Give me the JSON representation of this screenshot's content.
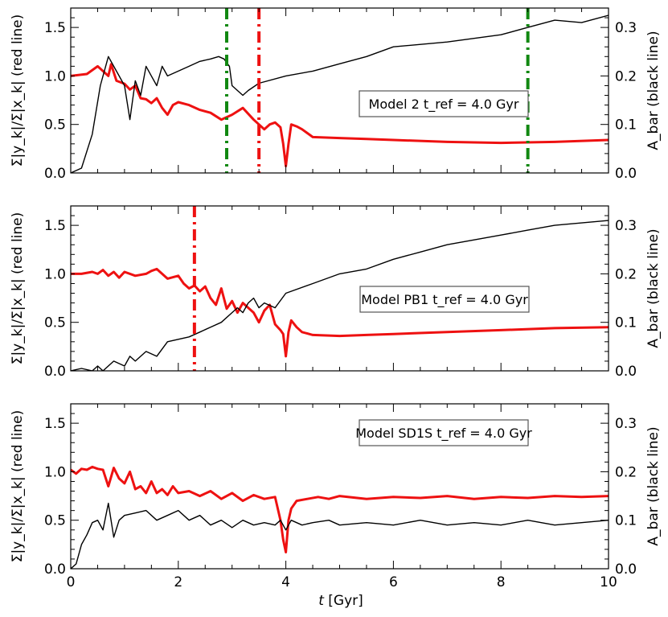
{
  "figure": {
    "xlabel": "t [Gyr]",
    "left_ylabel": "Σ|y_k|/Σ|x_k| (red line)",
    "right_ylabel": "A_bar (black line)",
    "x_ticks": [
      "0",
      "2",
      "4",
      "6",
      "8",
      "10"
    ],
    "left_ticks": [
      "0.0",
      "0.5",
      "1.0",
      "1.5"
    ],
    "right_ticks": [
      "0.0",
      "0.1",
      "0.2",
      "0.3"
    ],
    "colors": {
      "red": "#ee1111",
      "black": "#000000",
      "green": "#118811"
    }
  },
  "chart_data": [
    {
      "type": "line",
      "legend": "Model 2 t_ref = 4.0 Gyr",
      "model": "Model 2",
      "tref": "4.0 Gyr",
      "xlim": [
        0,
        10
      ],
      "ylim_left": [
        0,
        1.7
      ],
      "ylim_right": [
        0,
        0.34
      ],
      "series": [
        {
          "name": "red line",
          "axis": "left",
          "color": "#ee1111",
          "x": [
            0,
            0.3,
            0.5,
            0.7,
            0.75,
            0.85,
            1.0,
            1.1,
            1.2,
            1.3,
            1.4,
            1.5,
            1.6,
            1.7,
            1.8,
            1.9,
            2.0,
            2.2,
            2.4,
            2.6,
            2.8,
            3.0,
            3.2,
            3.4,
            3.5,
            3.6,
            3.7,
            3.8,
            3.9,
            3.95,
            4.0,
            4.05,
            4.1,
            4.2,
            4.3,
            4.5,
            5.0,
            5.5,
            6.0,
            7.0,
            8.0,
            9.0,
            10.0
          ],
          "y": [
            1.0,
            1.02,
            1.1,
            1.0,
            1.12,
            0.95,
            0.92,
            0.86,
            0.9,
            0.77,
            0.76,
            0.72,
            0.77,
            0.67,
            0.6,
            0.7,
            0.73,
            0.7,
            0.65,
            0.62,
            0.55,
            0.6,
            0.67,
            0.55,
            0.5,
            0.45,
            0.5,
            0.52,
            0.47,
            0.3,
            0.07,
            0.3,
            0.5,
            0.48,
            0.45,
            0.37,
            0.36,
            0.35,
            0.34,
            0.32,
            0.31,
            0.32,
            0.34
          ]
        },
        {
          "name": "black line",
          "axis": "right",
          "color": "#000000",
          "x": [
            0,
            0.2,
            0.4,
            0.55,
            0.7,
            0.8,
            0.9,
            1.0,
            1.1,
            1.2,
            1.3,
            1.4,
            1.5,
            1.6,
            1.7,
            1.8,
            2.0,
            2.2,
            2.4,
            2.6,
            2.75,
            2.85,
            2.95,
            3.0,
            3.1,
            3.2,
            3.3,
            3.5,
            4.0,
            4.5,
            5.0,
            5.5,
            6.0,
            7.0,
            8.0,
            8.5,
            9.0,
            9.5,
            10.0
          ],
          "y": [
            0.0,
            0.01,
            0.08,
            0.18,
            0.24,
            0.22,
            0.2,
            0.18,
            0.11,
            0.19,
            0.16,
            0.22,
            0.2,
            0.18,
            0.22,
            0.2,
            0.21,
            0.22,
            0.23,
            0.235,
            0.24,
            0.235,
            0.22,
            0.18,
            0.17,
            0.16,
            0.17,
            0.185,
            0.2,
            0.21,
            0.225,
            0.24,
            0.26,
            0.27,
            0.285,
            0.3,
            0.315,
            0.31,
            0.325
          ]
        }
      ],
      "vlines": [
        {
          "x": 2.9,
          "color": "#118811",
          "style": "dashdot"
        },
        {
          "x": 3.5,
          "color": "#ee1111",
          "style": "dashdot"
        },
        {
          "x": 8.5,
          "color": "#118811",
          "style": "dashdot"
        }
      ],
      "legend_position": "center-right"
    },
    {
      "type": "line",
      "legend": "Model PB1 t_ref = 4.0 Gyr",
      "model": "Model PB1",
      "tref": "4.0 Gyr",
      "xlim": [
        0,
        10
      ],
      "ylim_left": [
        0,
        1.7
      ],
      "ylim_right": [
        0,
        0.34
      ],
      "series": [
        {
          "name": "red line",
          "axis": "left",
          "color": "#ee1111",
          "x": [
            0,
            0.2,
            0.4,
            0.5,
            0.6,
            0.7,
            0.8,
            0.9,
            1.0,
            1.2,
            1.4,
            1.5,
            1.6,
            1.7,
            1.8,
            2.0,
            2.1,
            2.2,
            2.3,
            2.4,
            2.5,
            2.6,
            2.7,
            2.8,
            2.9,
            3.0,
            3.1,
            3.2,
            3.3,
            3.4,
            3.5,
            3.6,
            3.7,
            3.8,
            3.9,
            3.95,
            4.0,
            4.05,
            4.1,
            4.2,
            4.3,
            4.5,
            5.0,
            5.5,
            6.0,
            7.0,
            8.0,
            9.0,
            10.0
          ],
          "y": [
            1.0,
            1.0,
            1.02,
            1.0,
            1.04,
            0.98,
            1.02,
            0.96,
            1.02,
            0.98,
            1.0,
            1.03,
            1.05,
            1.0,
            0.95,
            0.98,
            0.9,
            0.85,
            0.88,
            0.82,
            0.87,
            0.75,
            0.68,
            0.85,
            0.64,
            0.72,
            0.6,
            0.7,
            0.65,
            0.6,
            0.5,
            0.62,
            0.68,
            0.48,
            0.42,
            0.38,
            0.15,
            0.4,
            0.52,
            0.45,
            0.4,
            0.37,
            0.36,
            0.37,
            0.38,
            0.4,
            0.42,
            0.44,
            0.45
          ]
        },
        {
          "name": "black line",
          "axis": "right",
          "color": "#000000",
          "x": [
            0,
            0.2,
            0.4,
            0.5,
            0.6,
            0.8,
            1.0,
            1.1,
            1.2,
            1.4,
            1.6,
            1.8,
            2.0,
            2.2,
            2.4,
            2.6,
            2.8,
            3.0,
            3.1,
            3.2,
            3.3,
            3.4,
            3.5,
            3.6,
            3.8,
            4.0,
            4.5,
            5.0,
            5.5,
            6.0,
            6.5,
            7.0,
            7.5,
            8.0,
            8.5,
            9.0,
            9.5,
            10.0
          ],
          "y": [
            0.0,
            0.005,
            0.0,
            0.01,
            0.0,
            0.02,
            0.01,
            0.03,
            0.02,
            0.04,
            0.03,
            0.06,
            0.065,
            0.07,
            0.08,
            0.09,
            0.1,
            0.12,
            0.13,
            0.12,
            0.14,
            0.15,
            0.13,
            0.14,
            0.13,
            0.16,
            0.18,
            0.2,
            0.21,
            0.23,
            0.245,
            0.26,
            0.27,
            0.28,
            0.29,
            0.3,
            0.305,
            0.31
          ]
        }
      ],
      "vlines": [
        {
          "x": 2.3,
          "color": "#ee1111",
          "style": "dashdot"
        }
      ],
      "legend_position": "center-right"
    },
    {
      "type": "line",
      "legend": "Model SD1S t_ref = 4.0 Gyr",
      "model": "Model SD1S",
      "tref": "4.0 Gyr",
      "xlim": [
        0,
        10
      ],
      "ylim_left": [
        0,
        1.7
      ],
      "ylim_right": [
        0,
        0.34
      ],
      "series": [
        {
          "name": "red line",
          "axis": "left",
          "color": "#ee1111",
          "x": [
            0,
            0.1,
            0.2,
            0.3,
            0.4,
            0.5,
            0.6,
            0.7,
            0.8,
            0.9,
            1.0,
            1.1,
            1.2,
            1.3,
            1.4,
            1.5,
            1.6,
            1.7,
            1.8,
            1.9,
            2.0,
            2.2,
            2.4,
            2.6,
            2.8,
            3.0,
            3.2,
            3.4,
            3.6,
            3.8,
            3.9,
            3.95,
            4.0,
            4.05,
            4.1,
            4.2,
            4.4,
            4.6,
            4.8,
            5.0,
            5.5,
            6.0,
            6.5,
            7.0,
            7.5,
            8.0,
            8.5,
            9.0,
            9.5,
            10.0
          ],
          "y": [
            1.02,
            0.98,
            1.03,
            1.02,
            1.05,
            1.03,
            1.02,
            0.85,
            1.04,
            0.93,
            0.88,
            1.0,
            0.82,
            0.85,
            0.78,
            0.9,
            0.78,
            0.82,
            0.76,
            0.85,
            0.78,
            0.8,
            0.75,
            0.8,
            0.72,
            0.78,
            0.7,
            0.76,
            0.72,
            0.74,
            0.5,
            0.3,
            0.17,
            0.5,
            0.62,
            0.7,
            0.72,
            0.74,
            0.72,
            0.75,
            0.72,
            0.74,
            0.73,
            0.75,
            0.72,
            0.74,
            0.73,
            0.75,
            0.74,
            0.75
          ]
        },
        {
          "name": "black line",
          "axis": "right",
          "color": "#000000",
          "x": [
            0,
            0.1,
            0.2,
            0.3,
            0.4,
            0.5,
            0.6,
            0.7,
            0.8,
            0.9,
            1.0,
            1.2,
            1.4,
            1.6,
            1.8,
            2.0,
            2.2,
            2.4,
            2.6,
            2.8,
            3.0,
            3.2,
            3.4,
            3.6,
            3.8,
            3.9,
            4.0,
            4.1,
            4.3,
            4.5,
            4.8,
            5.0,
            5.5,
            6.0,
            6.5,
            7.0,
            7.5,
            8.0,
            8.5,
            9.0,
            9.5,
            10.0
          ],
          "y": [
            0.0,
            0.01,
            0.05,
            0.07,
            0.095,
            0.1,
            0.08,
            0.135,
            0.065,
            0.1,
            0.11,
            0.115,
            0.12,
            0.1,
            0.11,
            0.12,
            0.1,
            0.11,
            0.09,
            0.1,
            0.085,
            0.1,
            0.09,
            0.095,
            0.09,
            0.1,
            0.08,
            0.1,
            0.09,
            0.095,
            0.1,
            0.09,
            0.095,
            0.09,
            0.1,
            0.09,
            0.095,
            0.09,
            0.1,
            0.09,
            0.095,
            0.1
          ]
        }
      ],
      "vlines": [],
      "legend_position": "top-right"
    }
  ]
}
